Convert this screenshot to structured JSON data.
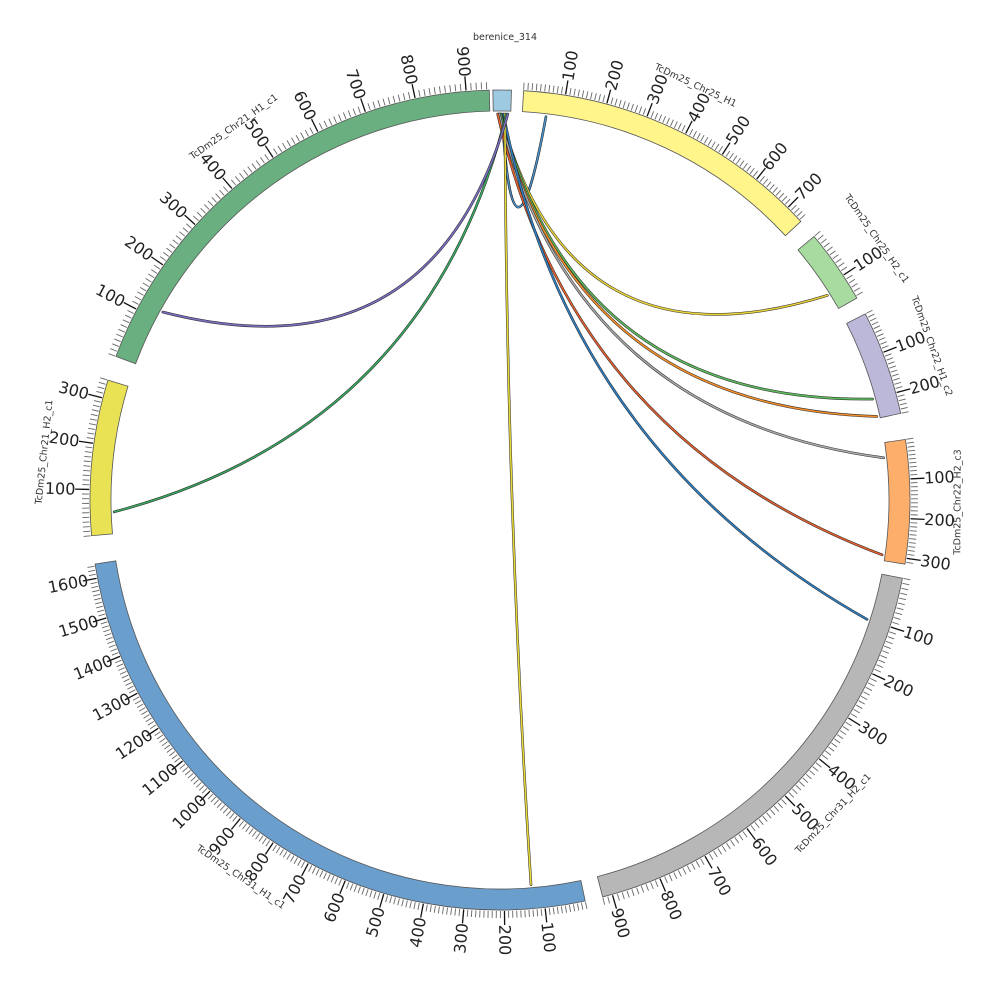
{
  "diagram": {
    "type": "circos",
    "segments": [
      {
        "name": "berenice_314",
        "length": 12,
        "color": "#9ecae1",
        "ticks": [],
        "minor_step": 0
      },
      {
        "name": "TcDm25_Chr25_H1",
        "length": 745,
        "color": "#fff58a",
        "ticks": [
          100,
          200,
          300,
          400,
          500,
          600,
          700
        ],
        "minor_step": 10
      },
      {
        "name": "TcDm25_Chr25_H2_c1",
        "length": 155,
        "color": "#a8dba0",
        "ticks": [
          100
        ],
        "minor_step": 10
      },
      {
        "name": "TcDm25_Chr22_H1_c2",
        "length": 250,
        "color": "#bcb8d9",
        "ticks": [
          100,
          200
        ],
        "minor_step": 10
      },
      {
        "name": "TcDm25_Chr22_H2_c3",
        "length": 315,
        "color": "#fdae6b",
        "ticks": [
          100,
          200,
          300
        ],
        "minor_step": 10
      },
      {
        "name": "TcDm25_Chr31_H2_c1",
        "length": 920,
        "color": "#b7b7b7",
        "ticks": [
          100,
          200,
          300,
          400,
          500,
          600,
          700,
          800,
          900
        ],
        "minor_step": 10
      },
      {
        "name": "TcDm25_Chr31_H1_c1",
        "length": 1635,
        "color": "#6a9ecd",
        "ticks": [
          100,
          200,
          300,
          400,
          500,
          600,
          700,
          800,
          900,
          1000,
          1100,
          1200,
          1300,
          1400,
          1500,
          1600
        ],
        "minor_step": 10
      },
      {
        "name": "TcDm25_Chr21_H2_c1",
        "length": 340,
        "color": "#e9e254",
        "ticks": [
          100,
          200,
          300
        ],
        "minor_step": 10
      },
      {
        "name": "TcDm25_Chr21_H1_c1",
        "length": 945,
        "color": "#6aaf80",
        "ticks": [
          100,
          200,
          300,
          400,
          500,
          600,
          700,
          800,
          900
        ],
        "minor_step": 10
      }
    ],
    "links": [
      {
        "from": "berenice_314",
        "from_pos": 6,
        "to": "TcDm25_Chr25_H1",
        "to_pos": 60,
        "color": "#4a90c8"
      },
      {
        "from": "berenice_314",
        "from_pos": 5,
        "to": "TcDm25_Chr25_H2_c1",
        "to_pos": 118,
        "color": "#e8d23a"
      },
      {
        "from": "berenice_314",
        "from_pos": 5,
        "to": "TcDm25_Chr22_H1_c2",
        "to_pos": 200,
        "color": "#5cb85c"
      },
      {
        "from": "berenice_314",
        "from_pos": 4,
        "to": "TcDm25_Chr22_H1_c2",
        "to_pos": 245,
        "color": "#f28e2b"
      },
      {
        "from": "berenice_314",
        "from_pos": 4,
        "to": "TcDm25_Chr22_H2_c3",
        "to_pos": 40,
        "color": "#aaaaaa"
      },
      {
        "from": "berenice_314",
        "from_pos": 3,
        "to": "TcDm25_Chr22_H2_c3",
        "to_pos": 300,
        "color": "#e06030"
      },
      {
        "from": "berenice_314",
        "from_pos": 7,
        "to": "TcDm25_Chr31_H2_c1",
        "to_pos": 100,
        "color": "#2f7fc1"
      },
      {
        "from": "berenice_314",
        "from_pos": 8,
        "to": "TcDm25_Chr31_H1_c1",
        "to_pos": 130,
        "color": "#e8d83a"
      },
      {
        "from": "berenice_314",
        "from_pos": 9,
        "to": "TcDm25_Chr21_H2_c1",
        "to_pos": 50,
        "color": "#3aa860"
      },
      {
        "from": "berenice_314",
        "from_pos": 10,
        "to": "TcDm25_Chr21_H1_c1",
        "to_pos": 120,
        "color": "#7b6fc0"
      }
    ]
  }
}
